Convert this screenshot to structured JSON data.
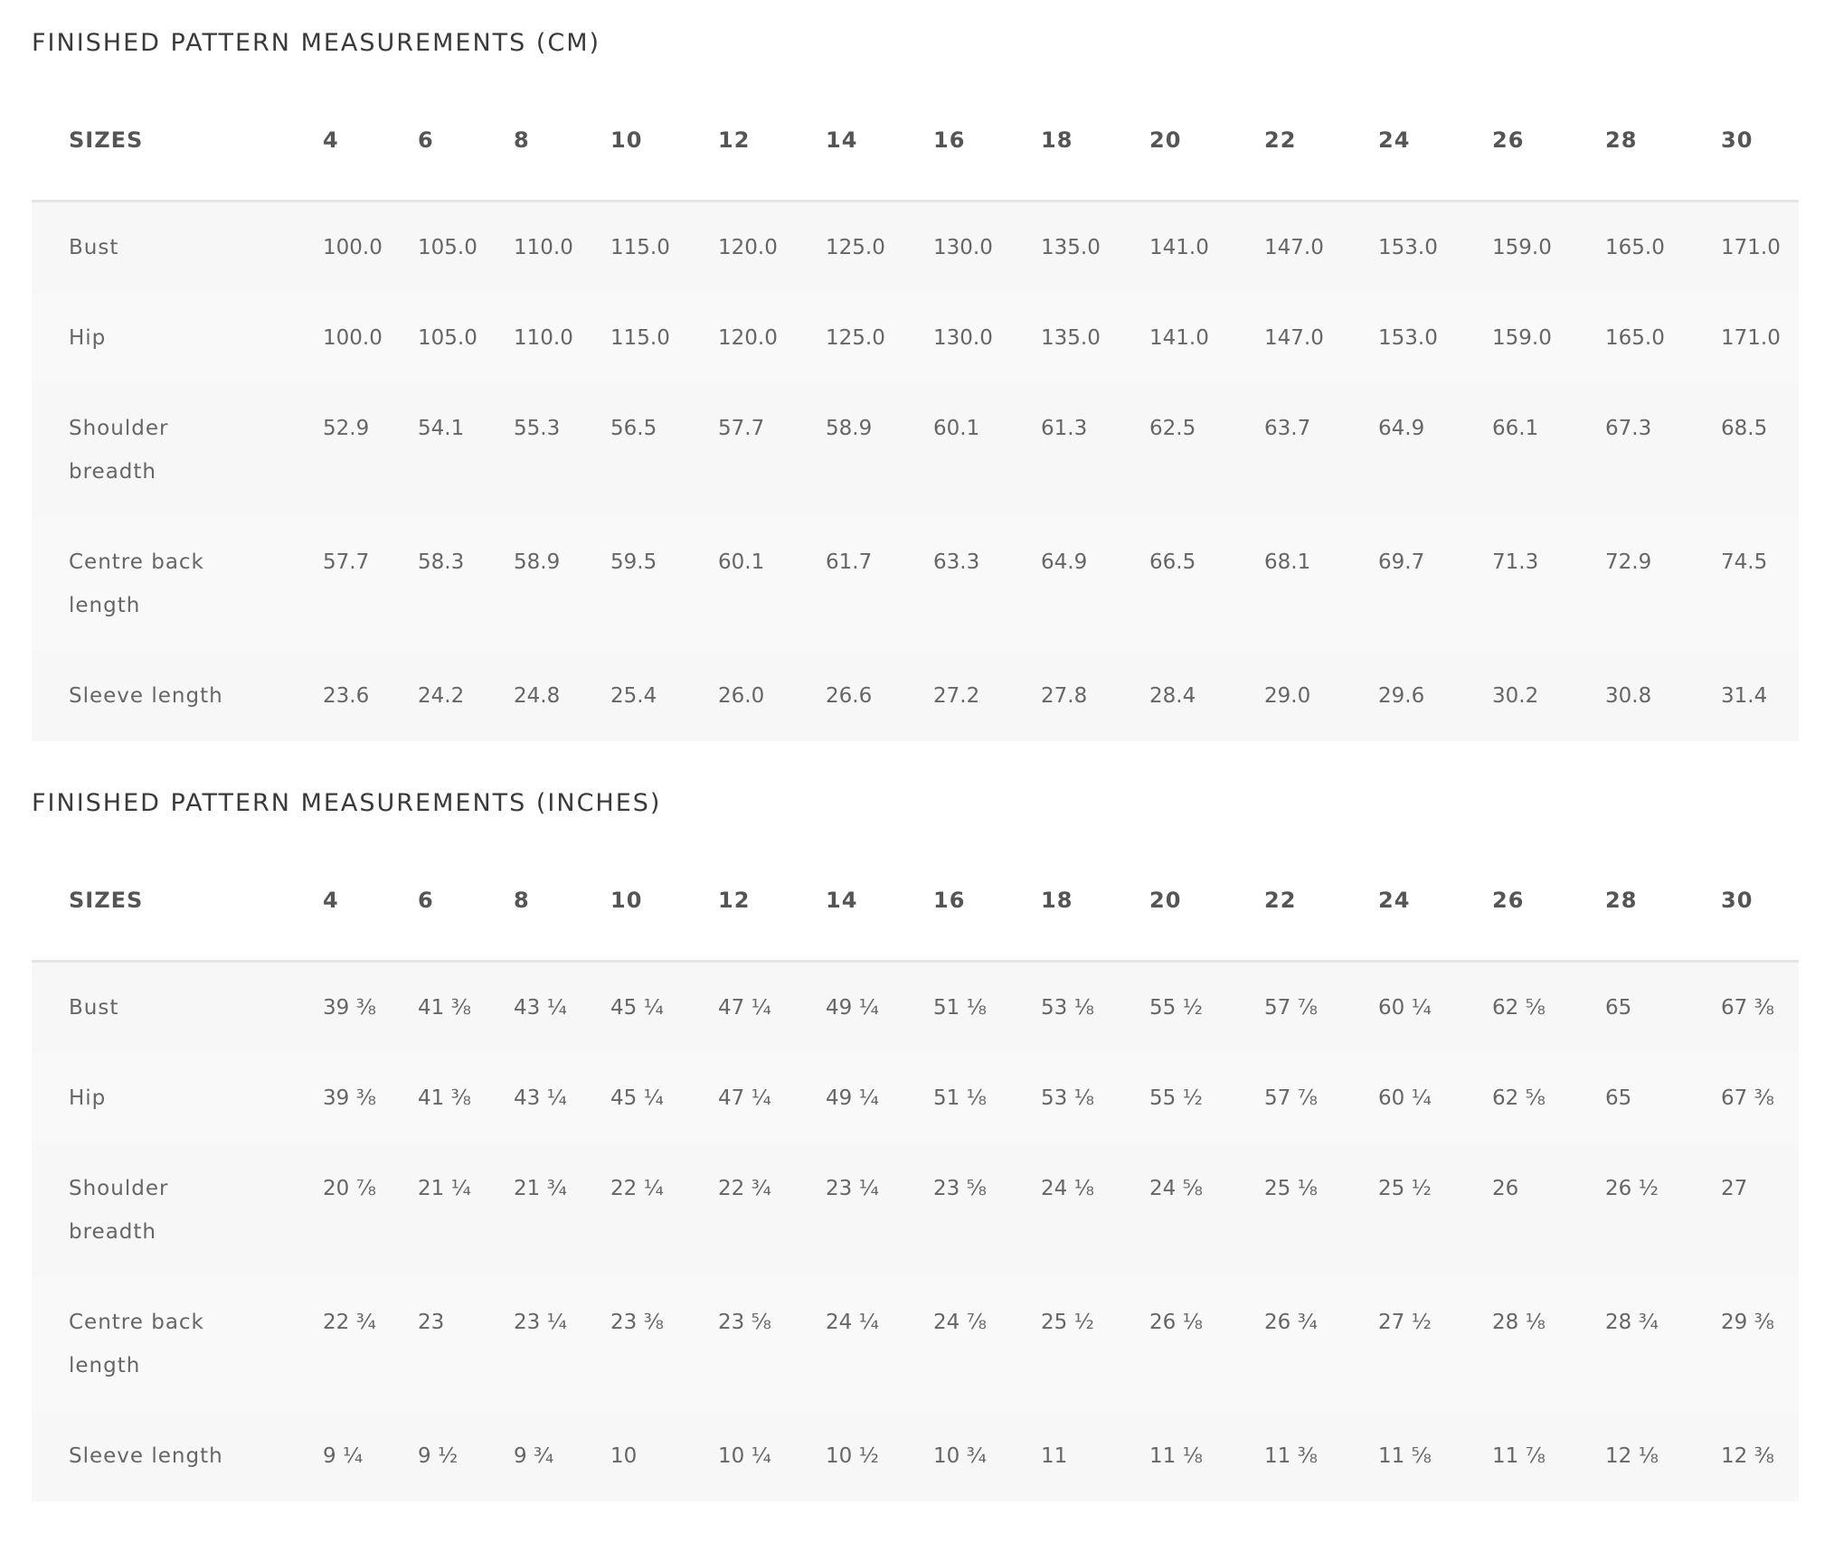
{
  "sections": [
    {
      "title": "FINISHED PATTERN MEASUREMENTS (CM)",
      "table": {
        "header": [
          "SIZES",
          "4",
          "6",
          "8",
          "10",
          "12",
          "14",
          "16",
          "18",
          "20",
          "22",
          "24",
          "26",
          "28",
          "30"
        ],
        "rows": [
          [
            "Bust",
            "100.0",
            "105.0",
            "110.0",
            "115.0",
            "120.0",
            "125.0",
            "130.0",
            "135.0",
            "141.0",
            "147.0",
            "153.0",
            "159.0",
            "165.0",
            "171.0"
          ],
          [
            "Hip",
            "100.0",
            "105.0",
            "110.0",
            "115.0",
            "120.0",
            "125.0",
            "130.0",
            "135.0",
            "141.0",
            "147.0",
            "153.0",
            "159.0",
            "165.0",
            "171.0"
          ],
          [
            "Shoulder breadth",
            "52.9",
            "54.1",
            "55.3",
            "56.5",
            "57.7",
            "58.9",
            "60.1",
            "61.3",
            "62.5",
            "63.7",
            "64.9",
            "66.1",
            "67.3",
            "68.5"
          ],
          [
            "Centre back length",
            "57.7",
            "58.3",
            "58.9",
            "59.5",
            "60.1",
            "61.7",
            "63.3",
            "64.9",
            "66.5",
            "68.1",
            "69.7",
            "71.3",
            "72.9",
            "74.5"
          ],
          [
            "Sleeve length",
            "23.6",
            "24.2",
            "24.8",
            "25.4",
            "26.0",
            "26.6",
            "27.2",
            "27.8",
            "28.4",
            "29.0",
            "29.6",
            "30.2",
            "30.8",
            "31.4"
          ]
        ]
      }
    },
    {
      "title": "FINISHED PATTERN MEASUREMENTS (INCHES)",
      "table": {
        "header": [
          "SIZES",
          "4",
          "6",
          "8",
          "10",
          "12",
          "14",
          "16",
          "18",
          "20",
          "22",
          "24",
          "26",
          "28",
          "30"
        ],
        "rows": [
          [
            "Bust",
            "39 ⅜",
            "41 ⅜",
            "43 ¼",
            "45 ¼",
            "47 ¼",
            "49 ¼",
            "51 ⅛",
            "53 ⅛",
            "55 ½",
            "57 ⅞",
            "60 ¼",
            "62 ⅝",
            "65",
            "67 ⅜"
          ],
          [
            "Hip",
            "39 ⅜",
            "41 ⅜",
            "43 ¼",
            "45 ¼",
            "47 ¼",
            "49 ¼",
            "51 ⅛",
            "53 ⅛",
            "55 ½",
            "57 ⅞",
            "60 ¼",
            "62 ⅝",
            "65",
            "67 ⅜"
          ],
          [
            "Shoulder breadth",
            "20 ⅞",
            "21 ¼",
            "21 ¾",
            "22 ¼",
            "22 ¾",
            "23 ¼",
            "23 ⅝",
            "24 ⅛",
            "24 ⅝",
            "25 ⅛",
            "25 ½",
            "26",
            "26 ½",
            "27"
          ],
          [
            "Centre back length",
            "22 ¾",
            "23",
            "23 ¼",
            "23 ⅜",
            "23 ⅝",
            "24 ¼",
            "24 ⅞",
            "25 ½",
            "26 ⅛",
            "26 ¾",
            "27 ½",
            "28 ⅛",
            "28 ¾",
            "29 ⅜"
          ],
          [
            "Sleeve length",
            "9 ¼",
            "9 ½",
            "9 ¾",
            "10",
            "10 ¼",
            "10 ½",
            "10 ¾",
            "11",
            "11 ⅛",
            "11 ⅜",
            "11 ⅝",
            "11 ⅞",
            "12 ⅛",
            "12 ⅜"
          ]
        ]
      }
    }
  ]
}
